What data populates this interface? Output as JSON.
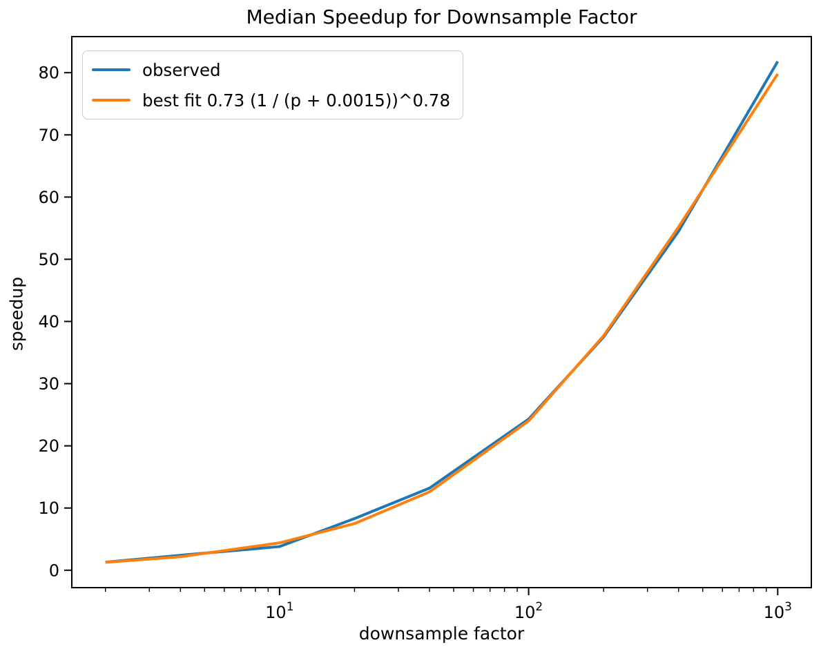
{
  "chart_data": {
    "type": "line",
    "title": "Median Speedup for Downsample Factor",
    "xlabel": "downsample factor",
    "ylabel": "speedup",
    "xscale": "log",
    "x": [
      2,
      4,
      10,
      20,
      40,
      100,
      200,
      400,
      1000
    ],
    "series": [
      {
        "name": "observed",
        "color": "#1f77b4",
        "values": [
          1.3,
          2.4,
          3.8,
          8.3,
          13.2,
          24.3,
          37.5,
          54.5,
          81.8
        ]
      },
      {
        "name": "best fit 0.73 (1 / (p + 0.0015))^0.78",
        "color": "#ff7f0e",
        "values": [
          1.27,
          2.17,
          4.4,
          7.5,
          12.6,
          24.0,
          37.7,
          55.2,
          79.8
        ]
      }
    ],
    "legend": {
      "position": "upper left",
      "entries": [
        "observed",
        "best fit 0.73 (1 / (p + 0.0015))^0.78"
      ]
    },
    "grid": false,
    "xlim_log": [
      0.166,
      3.135
    ],
    "ylim": [
      -2.8,
      85.8
    ],
    "yticks": [
      0,
      10,
      20,
      30,
      40,
      50,
      60,
      70,
      80
    ],
    "xticks": [
      {
        "value": 10,
        "exp": "1"
      },
      {
        "value": 100,
        "exp": "2"
      },
      {
        "value": 1000,
        "exp": "3"
      }
    ]
  }
}
